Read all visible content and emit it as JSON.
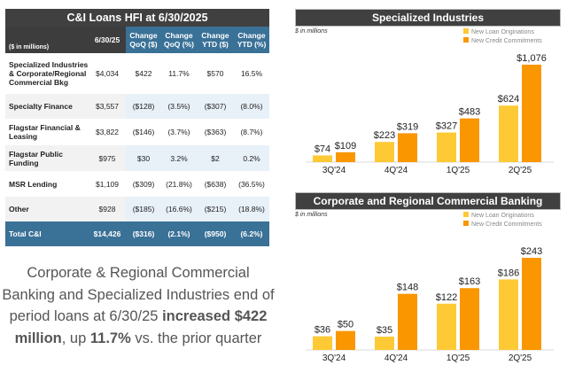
{
  "table": {
    "title": "C&I Loans HFI at 6/30/2025",
    "unit": "($ in millions)",
    "headers": [
      "6/30/25",
      "Change QoQ ($)",
      "Change QoQ (%)",
      "Change YTD ($)",
      "Change YTD (%)"
    ],
    "rows": [
      [
        "Specialized Industries & Corporate/Regional Commercial Bkg",
        "$4,034",
        "$422",
        "11.7%",
        "$570",
        "16.5%"
      ],
      [
        "Specialty Finance",
        "$3,557",
        "($128)",
        "(3.5%)",
        "($307)",
        "(8.0%)"
      ],
      [
        "Flagstar Financial & Leasing",
        "$3,822",
        "($146)",
        "(3.7%)",
        "($363)",
        "(8.7%)"
      ],
      [
        "Flagstar Public Funding",
        "$975",
        "$30",
        "3.2%",
        "$2",
        "0.2%"
      ],
      [
        "MSR Lending",
        "$1,109",
        "($309)",
        "(21.8%)",
        "($638)",
        "(36.5%)"
      ],
      [
        "Other",
        "$928",
        "($185)",
        "(16.6%)",
        "($215)",
        "(18.8%)"
      ]
    ],
    "total": [
      "Total C&I",
      "$14,426",
      "($316)",
      "(2.1%)",
      "($950)",
      "(6.2%)"
    ]
  },
  "summary": {
    "pre": "Corporate & Regional Commercial Banking and Specialized Industries end of period loans at 6/30/25 ",
    "bold1": "increased $422 million",
    "mid": ", up ",
    "bold2": "11.7%",
    "post": " vs. the prior quarter"
  },
  "chart_data": [
    {
      "type": "bar",
      "title": "Specialized Industries",
      "unit": "$ in millions",
      "categories": [
        "3Q'24",
        "4Q'24",
        "1Q'25",
        "2Q'25"
      ],
      "series": [
        {
          "name": "New Loan Originations",
          "values": [
            74,
            223,
            327,
            624
          ],
          "labels": [
            "$74",
            "$223",
            "$327",
            "$624"
          ],
          "color": "#fdc935"
        },
        {
          "name": "New Credit Commitments",
          "values": [
            109,
            319,
            483,
            1076
          ],
          "labels": [
            "$109",
            "$319",
            "$483",
            "$1,076"
          ],
          "color": "#fa9600"
        }
      ]
    },
    {
      "type": "bar",
      "title": "Corporate and Regional Commercial Banking",
      "unit": "$ in millions",
      "categories": [
        "3Q'24",
        "4Q'24",
        "1Q'25",
        "2Q'25"
      ],
      "series": [
        {
          "name": "New Loan Originations",
          "values": [
            36,
            35,
            122,
            186
          ],
          "labels": [
            "$36",
            "$35",
            "$122",
            "$186"
          ],
          "color": "#fdc935"
        },
        {
          "name": "New Credit Commitments",
          "values": [
            50,
            148,
            163,
            243
          ],
          "labels": [
            "$50",
            "$148",
            "$163",
            "$243"
          ],
          "color": "#fa9600"
        }
      ]
    }
  ]
}
